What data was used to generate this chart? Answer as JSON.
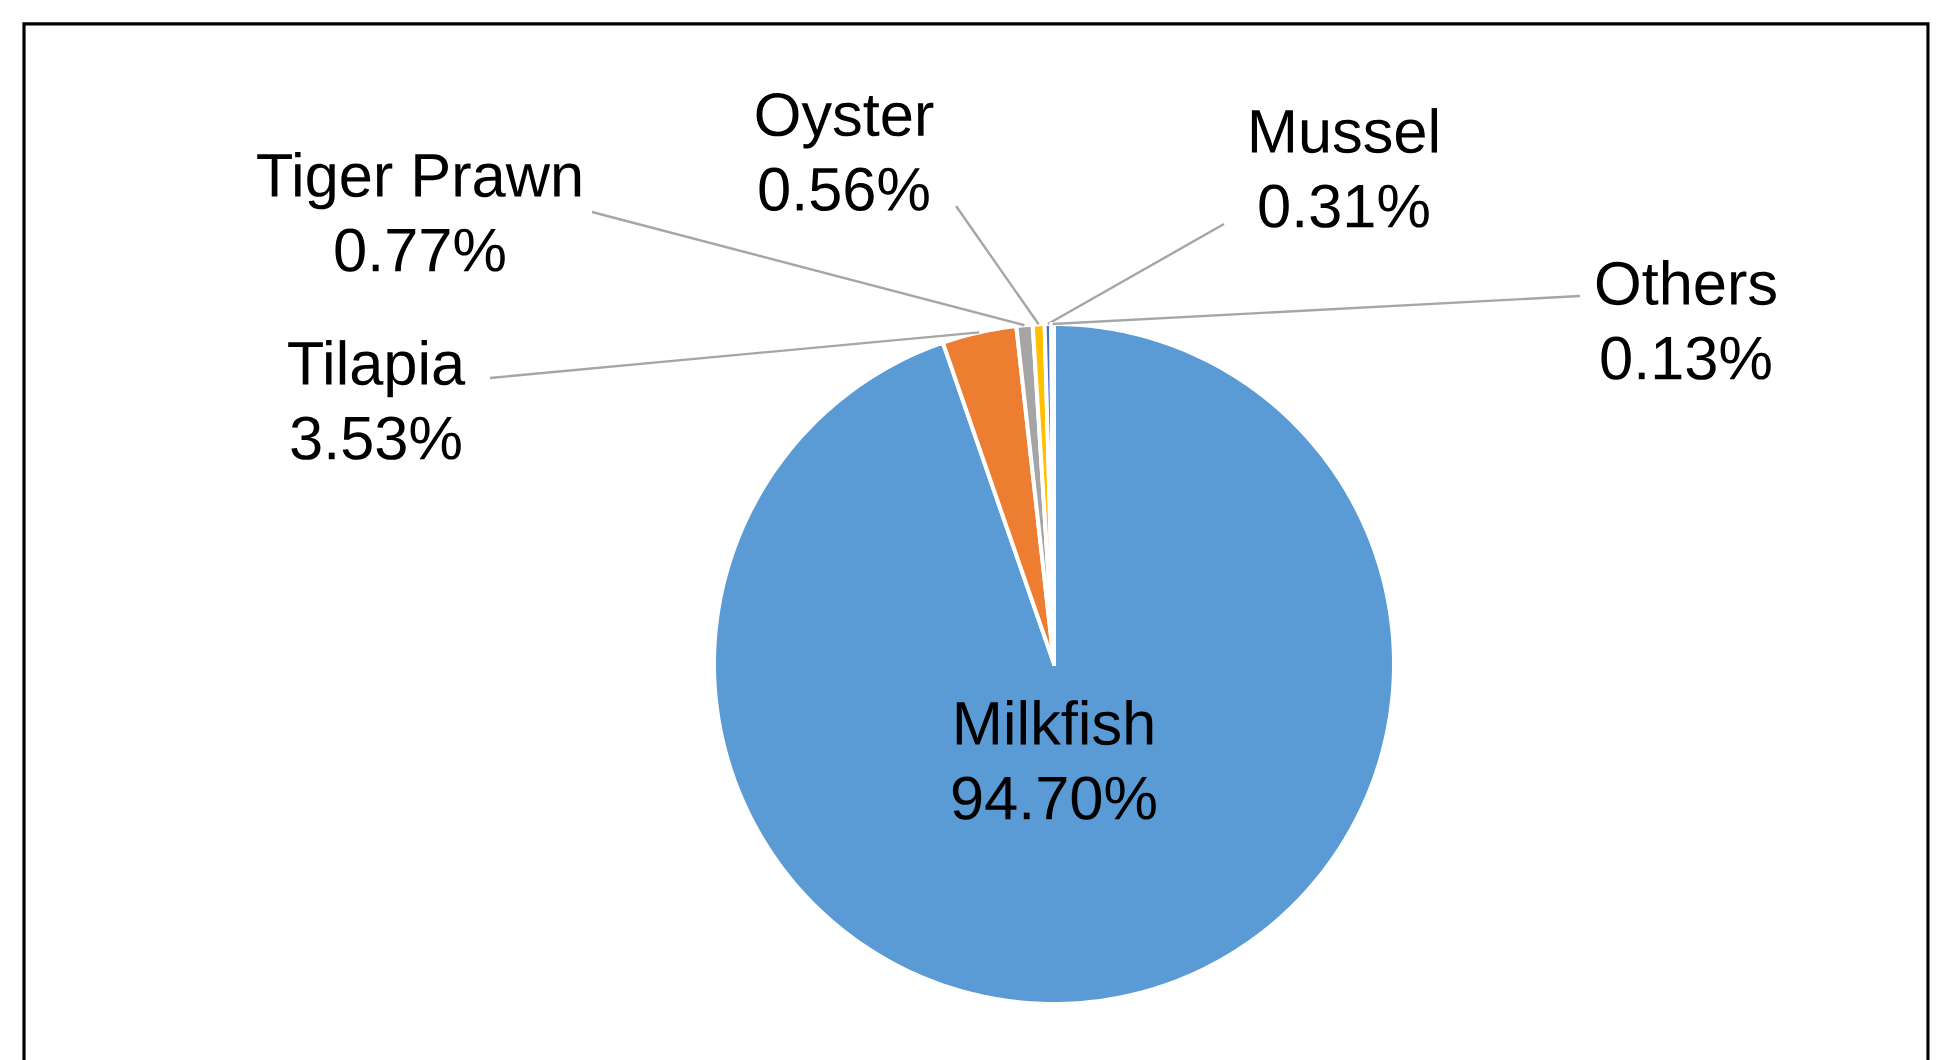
{
  "chart_data": {
    "type": "pie",
    "categories": [
      "Milkfish",
      "Tilapia",
      "Tiger Prawn",
      "Oyster",
      "Mussel",
      "Others"
    ],
    "values": [
      94.7,
      3.53,
      0.77,
      0.56,
      0.31,
      0.13
    ],
    "value_labels": [
      "94.70%",
      "3.53%",
      "0.77%",
      "0.56%",
      "0.31%",
      "0.13%"
    ],
    "colors": [
      "#5b9bd5",
      "#ed7d31",
      "#a5a5a5",
      "#ffc000",
      "#4472c4",
      "#70ad47"
    ]
  }
}
